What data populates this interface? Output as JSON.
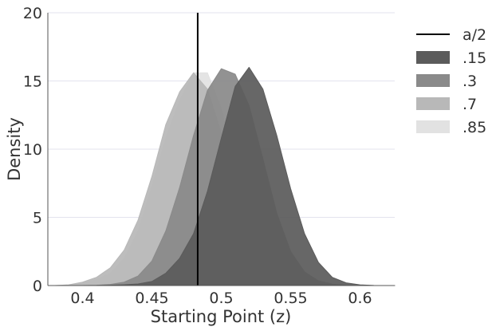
{
  "chart_data": {
    "type": "area",
    "xlabel": "Starting Point (z)",
    "ylabel": "Density",
    "xlim": [
      0.375,
      0.625
    ],
    "ylim": [
      0,
      20
    ],
    "xticks": [
      "0.4",
      "0.45",
      "0.5",
      "0.55",
      "0.6"
    ],
    "yticks": [
      "0",
      "5",
      "10",
      "15",
      "20"
    ],
    "grid": "horizontal",
    "legend_position": "right",
    "vline": {
      "name": "a/2",
      "x": 0.483,
      "color": "#000000"
    },
    "series": [
      {
        "name": ".85",
        "color": "#e2e2e2",
        "x": [
          0.38,
          0.39,
          0.4,
          0.41,
          0.42,
          0.43,
          0.44,
          0.45,
          0.46,
          0.47,
          0.48,
          0.49,
          0.5,
          0.51,
          0.52,
          0.53,
          0.54,
          0.55,
          0.56,
          0.57,
          0.58,
          0.59,
          0.6,
          0.61,
          0.62,
          0.625
        ],
        "values": [
          0.0,
          0.05,
          0.2,
          0.45,
          0.9,
          2.0,
          4.0,
          7.3,
          10.8,
          13.6,
          15.6,
          15.6,
          13.0,
          8.6,
          4.4,
          1.8,
          0.55,
          0.15,
          0.04,
          0.0,
          0.0,
          0.0,
          0.0,
          0.0,
          0.0,
          0.0
        ]
      },
      {
        "name": ".7",
        "color": "#b8b8b8",
        "x": [
          0.38,
          0.39,
          0.4,
          0.41,
          0.42,
          0.43,
          0.44,
          0.45,
          0.46,
          0.47,
          0.48,
          0.49,
          0.5,
          0.51,
          0.52,
          0.53,
          0.54,
          0.55,
          0.56,
          0.57,
          0.58,
          0.59,
          0.6,
          0.61,
          0.62,
          0.625
        ],
        "values": [
          0.0,
          0.05,
          0.25,
          0.6,
          1.3,
          2.6,
          4.8,
          8.0,
          11.8,
          14.2,
          15.6,
          14.4,
          11.2,
          7.2,
          3.8,
          1.6,
          0.5,
          0.15,
          0.03,
          0.0,
          0.0,
          0.0,
          0.0,
          0.0,
          0.0,
          0.0
        ]
      },
      {
        "name": ".3",
        "color": "#8a8a8a",
        "x": [
          0.38,
          0.39,
          0.4,
          0.41,
          0.42,
          0.43,
          0.44,
          0.45,
          0.46,
          0.47,
          0.48,
          0.49,
          0.5,
          0.51,
          0.52,
          0.53,
          0.54,
          0.55,
          0.56,
          0.57,
          0.58,
          0.59,
          0.6,
          0.61,
          0.62,
          0.625
        ],
        "values": [
          0.0,
          0.0,
          0.0,
          0.02,
          0.08,
          0.25,
          0.7,
          1.8,
          4.0,
          7.2,
          11.0,
          14.3,
          15.9,
          15.5,
          13.2,
          9.3,
          5.3,
          2.5,
          1.0,
          0.35,
          0.1,
          0.02,
          0.0,
          0.0,
          0.0,
          0.0
        ]
      },
      {
        "name": ".15",
        "color": "#5b5b5b",
        "x": [
          0.38,
          0.39,
          0.4,
          0.41,
          0.42,
          0.43,
          0.44,
          0.45,
          0.46,
          0.47,
          0.48,
          0.49,
          0.5,
          0.51,
          0.52,
          0.53,
          0.54,
          0.55,
          0.56,
          0.57,
          0.58,
          0.59,
          0.6,
          0.61,
          0.62,
          0.625
        ],
        "values": [
          0.0,
          0.0,
          0.0,
          0.0,
          0.02,
          0.06,
          0.12,
          0.3,
          0.9,
          2.0,
          3.8,
          6.9,
          10.8,
          14.6,
          16.0,
          14.4,
          11.0,
          7.1,
          3.8,
          1.7,
          0.6,
          0.2,
          0.05,
          0.01,
          0.0,
          0.0
        ]
      }
    ],
    "legend": [
      {
        "name": "a/2",
        "kind": "line",
        "color": "#000000"
      },
      {
        "name": ".15",
        "kind": "patch",
        "color": "#5b5b5b"
      },
      {
        "name": ".3",
        "kind": "patch",
        "color": "#8a8a8a"
      },
      {
        "name": ".7",
        "kind": "patch",
        "color": "#b8b8b8"
      },
      {
        "name": ".85",
        "kind": "patch",
        "color": "#e2e2e2"
      }
    ]
  }
}
